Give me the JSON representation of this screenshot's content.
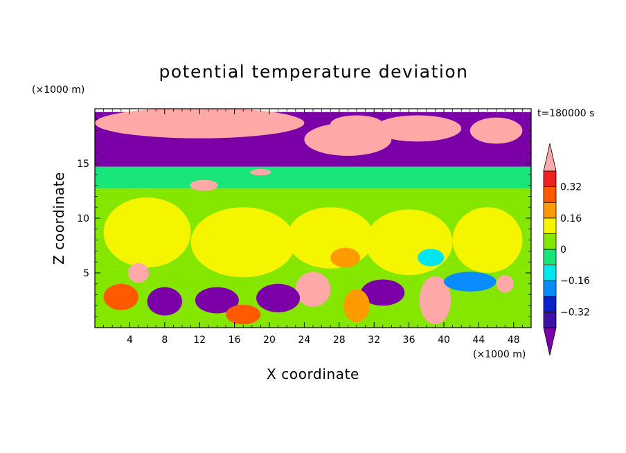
{
  "chart_data": {
    "type": "heatmap",
    "title": "potential temperature deviation",
    "xlabel": "X coordinate",
    "ylabel": "Z coordinate",
    "x_unit": "(×1000 m)",
    "y_unit": "(×1000 m)",
    "time_label": "t=180000 s",
    "xlim": [
      0,
      50
    ],
    "ylim": [
      0,
      20
    ],
    "xticks": [
      4,
      8,
      12,
      16,
      20,
      24,
      28,
      32,
      36,
      40,
      44,
      48
    ],
    "yticks": [
      5,
      10,
      15
    ],
    "colorbar": {
      "levels": [
        -0.4,
        -0.32,
        -0.24,
        -0.16,
        -0.08,
        0,
        0.08,
        0.16,
        0.24,
        0.32,
        0.4
      ],
      "tick_labels": [
        "0.32",
        "0.16",
        "0",
        "−0.16",
        "−0.32"
      ],
      "tick_values": [
        0.32,
        0.16,
        0,
        -0.16,
        -0.32
      ],
      "colors": [
        "#7b00a8",
        "#3a12a6",
        "#0a20c8",
        "#0a8cff",
        "#00e6ee",
        "#19e678",
        "#85e600",
        "#f5f500",
        "#ff9a00",
        "#ff5a00",
        "#ee2020",
        "#ffa8a8"
      ],
      "extend": "both"
    },
    "regions": [
      {
        "x": [
          0,
          50
        ],
        "y": [
          14.7,
          19.7
        ],
        "value": -0.45
      },
      {
        "x": [
          0,
          50
        ],
        "y": [
          12.7,
          14.7
        ],
        "value": -0.04
      },
      {
        "x": [
          0,
          50
        ],
        "y": [
          5.3,
          12.7
        ],
        "value": 0.04
      },
      {
        "x": [
          0,
          50
        ],
        "y": [
          0,
          5.3
        ],
        "value": 0.0
      }
    ],
    "blobs": [
      {
        "cx": 12,
        "cy": 18.7,
        "rx": 12,
        "ry": 1.4,
        "value": 0.45
      },
      {
        "cx": 29,
        "cy": 17.2,
        "rx": 5,
        "ry": 1.5,
        "value": 0.45
      },
      {
        "cx": 37,
        "cy": 18.2,
        "rx": 5,
        "ry": 1.2,
        "value": 0.45
      },
      {
        "cx": 46,
        "cy": 18.0,
        "rx": 3,
        "ry": 1.2,
        "value": 0.45
      },
      {
        "cx": 30,
        "cy": 18.6,
        "rx": 3,
        "ry": 0.8,
        "value": 0.45
      },
      {
        "cx": 12.5,
        "cy": 13.0,
        "rx": 1.6,
        "ry": 0.5,
        "value": 0.45
      },
      {
        "cx": 19,
        "cy": 14.2,
        "rx": 1.2,
        "ry": 0.3,
        "value": 0.45
      },
      {
        "cx": 6,
        "cy": 8.7,
        "rx": 5,
        "ry": 3.2,
        "value": 0.08
      },
      {
        "cx": 17,
        "cy": 7.8,
        "rx": 6,
        "ry": 3.2,
        "value": 0.08
      },
      {
        "cx": 27,
        "cy": 8.2,
        "rx": 5,
        "ry": 2.8,
        "value": 0.08
      },
      {
        "cx": 36,
        "cy": 7.8,
        "rx": 5,
        "ry": 3.0,
        "value": 0.08
      },
      {
        "cx": 45,
        "cy": 8.0,
        "rx": 4,
        "ry": 3.0,
        "value": 0.08
      },
      {
        "cx": 28.7,
        "cy": 6.4,
        "rx": 1.7,
        "ry": 0.9,
        "value": 0.2
      },
      {
        "cx": 38.5,
        "cy": 6.4,
        "rx": 1.5,
        "ry": 0.8,
        "value": -0.1
      },
      {
        "cx": 25,
        "cy": 3.5,
        "rx": 2,
        "ry": 1.6,
        "value": 0.45
      },
      {
        "cx": 39,
        "cy": 2.5,
        "rx": 1.8,
        "ry": 2.2,
        "value": 0.45
      },
      {
        "cx": 5,
        "cy": 5.0,
        "rx": 1.2,
        "ry": 0.9,
        "value": 0.45
      },
      {
        "cx": 47,
        "cy": 4.0,
        "rx": 1.0,
        "ry": 0.8,
        "value": 0.45
      },
      {
        "cx": 3,
        "cy": 2.8,
        "rx": 2,
        "ry": 1.2,
        "value": 0.28
      },
      {
        "cx": 8,
        "cy": 2.4,
        "rx": 2,
        "ry": 1.3,
        "value": -0.45
      },
      {
        "cx": 14,
        "cy": 2.5,
        "rx": 2.5,
        "ry": 1.2,
        "value": -0.45
      },
      {
        "cx": 21,
        "cy": 2.7,
        "rx": 2.5,
        "ry": 1.3,
        "value": -0.45
      },
      {
        "cx": 33,
        "cy": 3.2,
        "rx": 2.5,
        "ry": 1.2,
        "value": -0.45
      },
      {
        "cx": 43,
        "cy": 4.2,
        "rx": 3,
        "ry": 0.9,
        "value": -0.2
      },
      {
        "cx": 30,
        "cy": 2.0,
        "rx": 1.5,
        "ry": 1.5,
        "value": 0.2
      },
      {
        "cx": 17,
        "cy": 1.2,
        "rx": 2.0,
        "ry": 0.9,
        "value": 0.3
      }
    ]
  }
}
